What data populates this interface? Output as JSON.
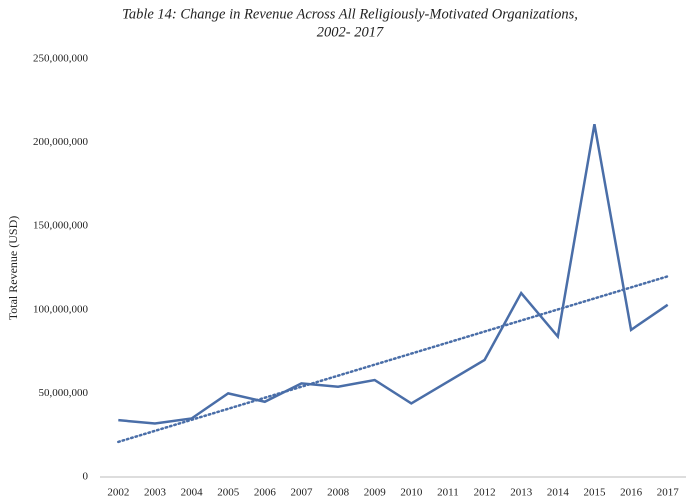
{
  "chart_data": {
    "type": "line",
    "title": [
      "Table 14: Change in Revenue Across All Religiously-Motivated Organizations,",
      "2002- 2017"
    ],
    "y_label": "Total Revenue (USD)",
    "categories": [
      "2002",
      "2003",
      "2004",
      "2005",
      "2006",
      "2007",
      "2008",
      "2009",
      "2010",
      "2011",
      "2012",
      "2013",
      "2014",
      "2015",
      "2016",
      "2017"
    ],
    "series": [
      {
        "color": "#4a6ea8",
        "style": "solid",
        "values": [
          34000000,
          32000000,
          35000000,
          50000000,
          45000000,
          56000000,
          54000000,
          58000000,
          44000000,
          57000000,
          70000000,
          110000000,
          84000000,
          211000000,
          88000000,
          103000000
        ]
      },
      {
        "color": "#4a6ea8",
        "style": "dotted",
        "values": [
          21000000,
          27600000,
          34200000,
          40800000,
          47400000,
          54000000,
          60600000,
          67200000,
          73800000,
          80400000,
          87000000,
          93600000,
          100200000,
          106800000,
          113400000,
          120000000
        ]
      }
    ],
    "ylim": [
      0,
      250000000
    ],
    "yticks": [
      0,
      {
        "value": 50000000,
        "label": "50,000,000"
      },
      {
        "value": 100000000,
        "label": "100,000,000"
      },
      {
        "value": 150000000,
        "label": "150,000,000"
      },
      {
        "value": 200000000,
        "label": "200,000,000"
      },
      {
        "value": 250000000,
        "label": "250,000,000"
      }
    ],
    "grid": false
  }
}
